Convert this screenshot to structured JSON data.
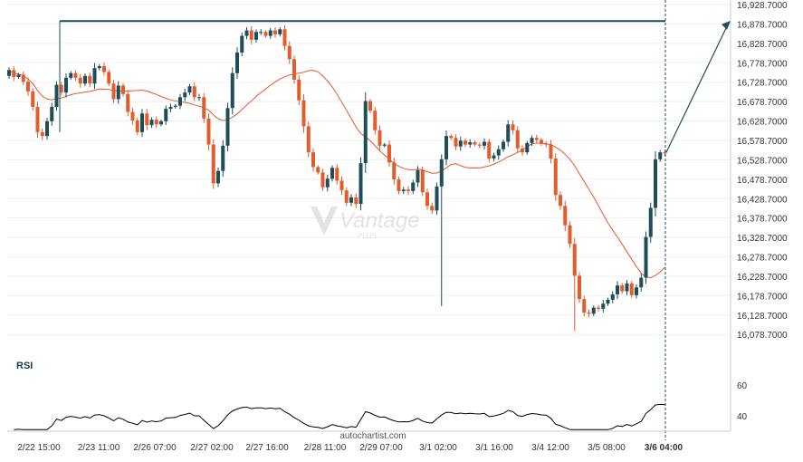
{
  "chart_data": [
    {
      "type": "candlestick",
      "y_ticks": [
        "16,928.7000",
        "16,878.7000",
        "16,828.7000",
        "16,778.7000",
        "16,728.7000",
        "16,678.7000",
        "16,628.7000",
        "16,578.7000",
        "16,528.7000",
        "16,478.7000",
        "16,428.7000",
        "16,378.7000",
        "16,328.7000",
        "16,278.7000",
        "16,228.7000",
        "16,178.7000",
        "16,128.7000",
        "16,078.7000"
      ],
      "y_tick_values": [
        16928.7,
        16878.7,
        16828.7,
        16778.7,
        16728.7,
        16678.7,
        16628.7,
        16578.7,
        16528.7,
        16478.7,
        16428.7,
        16378.7,
        16328.7,
        16278.7,
        16228.7,
        16178.7,
        16128.7,
        16078.7
      ],
      "x_ticks": [
        "2/22 15:00",
        "2/23 11:00",
        "2/26 07:00",
        "2/27 02:00",
        "2/27 16:00",
        "2/28 11:00",
        "2/29 07:00",
        "3/1 02:00",
        "3/1 16:00",
        "3/4 12:00",
        "3/5 08:00",
        "3/6 04:00"
      ],
      "x_tick_bold_index": 11,
      "colors": {
        "up": "#1f4e5a",
        "down": "#e45b2c",
        "ma": "#e45b2c",
        "resistance": "#1f4e5a",
        "forecast": "#1f4e5a",
        "axis_text": "#333333"
      },
      "resistance_level": 16886,
      "forecast_target": 16887,
      "moving_average": "declared in script (follows candles)",
      "candles_note": "approximate OHLC series, ~145 bars"
    },
    {
      "type": "line",
      "title": "RSI",
      "y_ticks": [
        "60",
        "40"
      ],
      "y_tick_values": [
        60,
        40
      ],
      "ylim": [
        30,
        70
      ],
      "color": "#000000"
    }
  ],
  "watermark": {
    "brand": "Vantage",
    "sub": "PLUS"
  },
  "source": "autochartist.com"
}
